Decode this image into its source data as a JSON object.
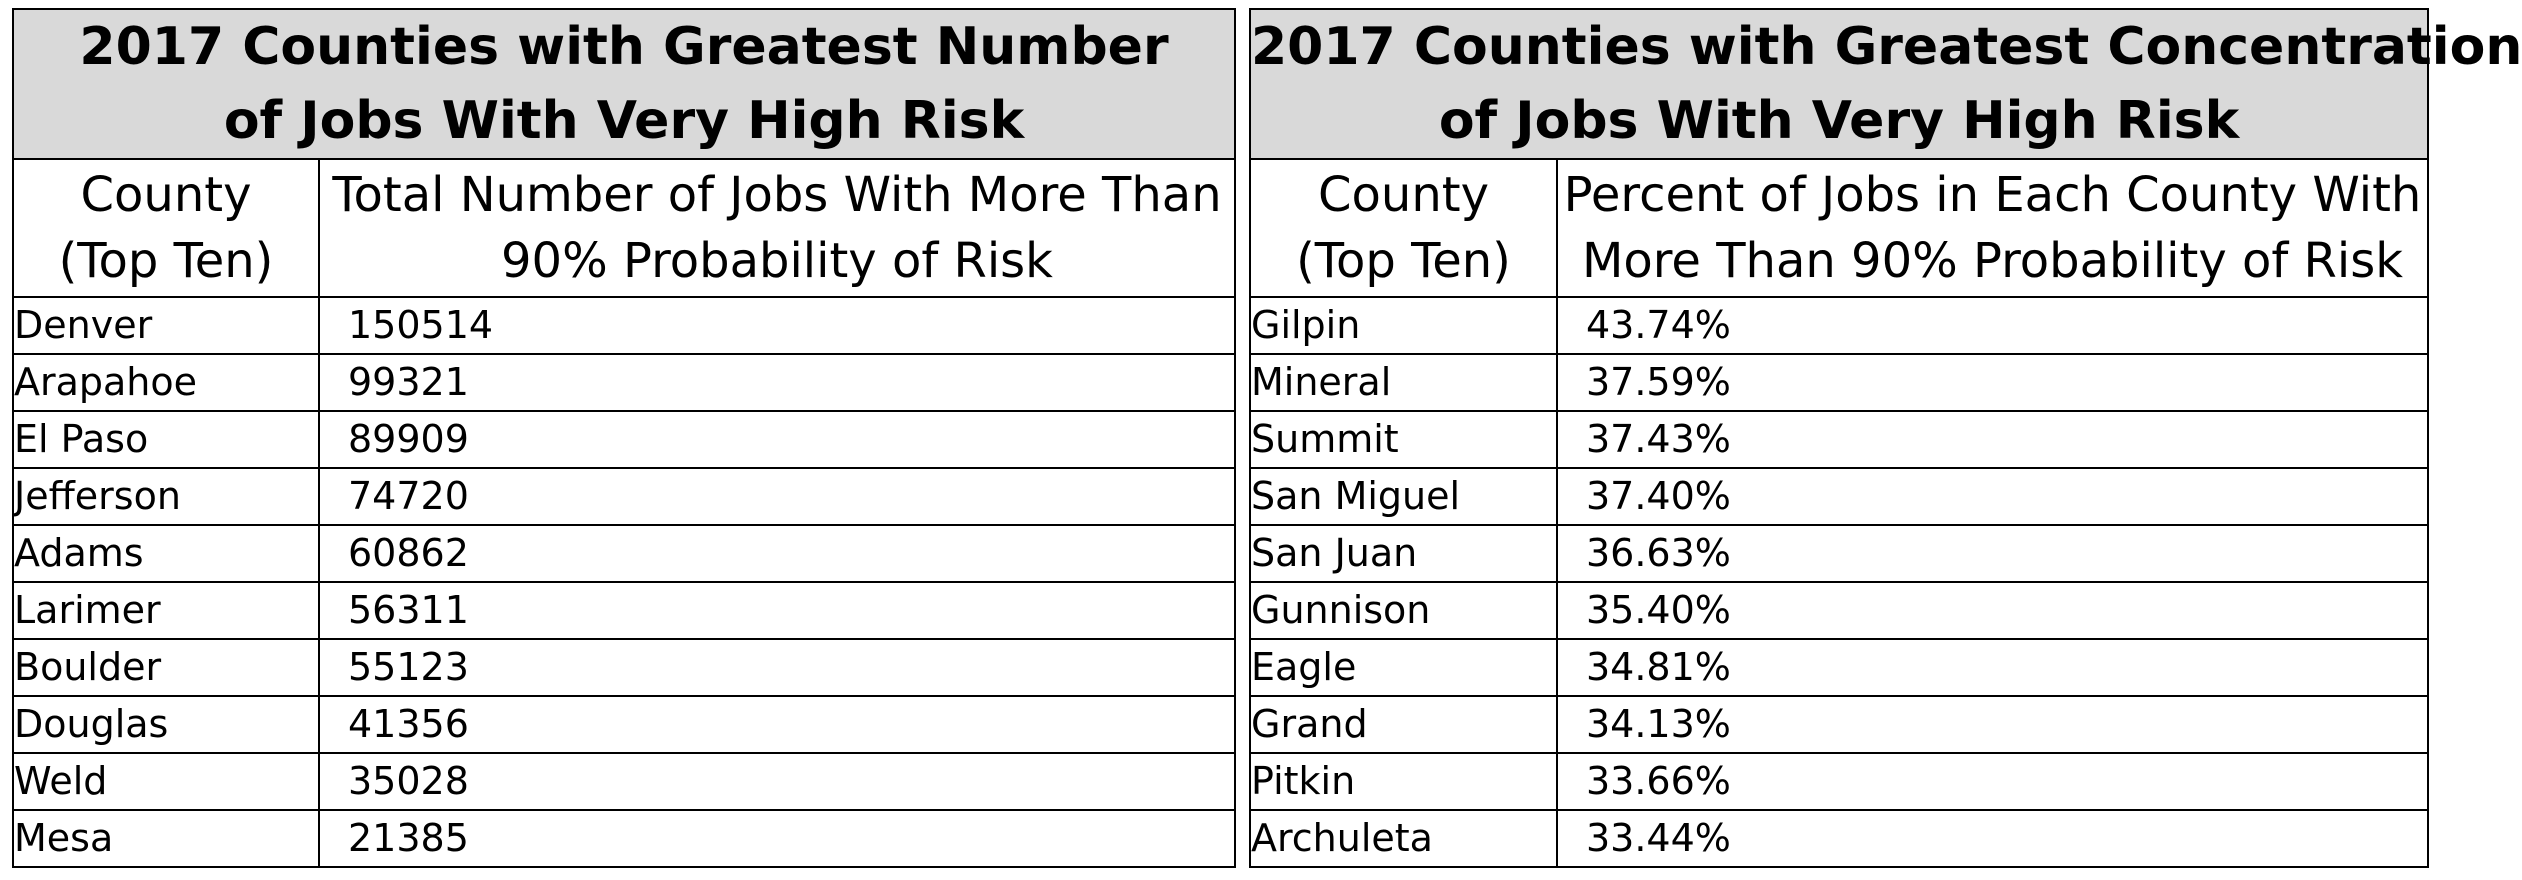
{
  "left_table": {
    "title_line1": "2017 Counties with Greatest Number",
    "title_line2": "of Jobs With Very High Risk",
    "col1_header_line1": "County",
    "col1_header_line2": "(Top Ten)",
    "col2_header_line1": "Total Number of Jobs With More Than",
    "col2_header_line2": "90% Probability of Risk",
    "rows": [
      {
        "county": "Denver",
        "value": "150514"
      },
      {
        "county": "Arapahoe",
        "value": "99321"
      },
      {
        "county": "El Paso",
        "value": "89909"
      },
      {
        "county": "Jefferson",
        "value": "74720"
      },
      {
        "county": "Adams",
        "value": "60862"
      },
      {
        "county": "Larimer",
        "value": "56311"
      },
      {
        "county": "Boulder",
        "value": "55123"
      },
      {
        "county": "Douglas",
        "value": "41356"
      },
      {
        "county": "Weld",
        "value": "35028"
      },
      {
        "county": "Mesa",
        "value": "21385"
      }
    ]
  },
  "right_table": {
    "title_line1": "2017 Counties with Greatest Concentration",
    "title_line2": "of Jobs With Very High Risk",
    "col1_header_line1": "County",
    "col1_header_line2": "(Top Ten)",
    "col2_header_line1": "Percent of Jobs in Each County With",
    "col2_header_line2": "More Than 90% Probability of Risk",
    "rows": [
      {
        "county": "Gilpin",
        "value": "43.74%"
      },
      {
        "county": "Mineral",
        "value": "37.59%"
      },
      {
        "county": "Summit",
        "value": "37.43%"
      },
      {
        "county": "San Miguel",
        "value": "37.40%"
      },
      {
        "county": "San Juan",
        "value": "36.63%"
      },
      {
        "county": "Gunnison",
        "value": "35.40%"
      },
      {
        "county": "Eagle",
        "value": "34.81%"
      },
      {
        "county": "Grand",
        "value": "34.13%"
      },
      {
        "county": "Pitkin",
        "value": "33.66%"
      },
      {
        "county": "Archuleta",
        "value": "33.44%"
      }
    ]
  },
  "colors": {
    "title_background": "#d9d9d9",
    "border": "#000000"
  }
}
